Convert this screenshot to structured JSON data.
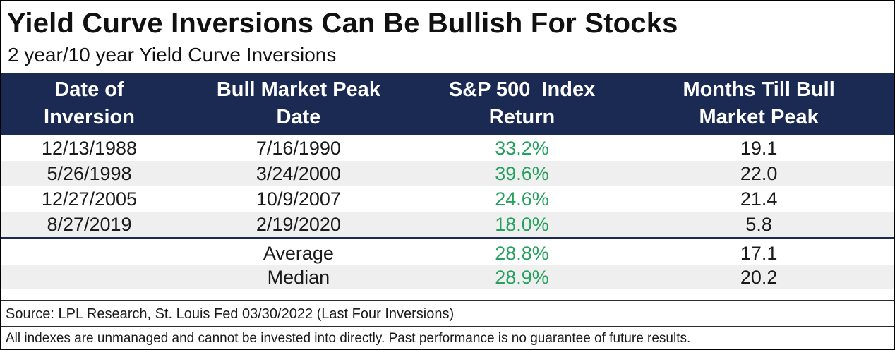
{
  "title": "Yield Curve Inversions Can Be Bullish For Stocks",
  "subtitle": "2 year/10 year Yield Curve Inversions",
  "colors": {
    "header_bg": "#1b2a52",
    "stripe_bg": "#efefef",
    "positive_green": "#24a15e"
  },
  "table": {
    "columns": [
      {
        "line1": "Date of",
        "line2": "Inversion"
      },
      {
        "line1": "Bull Market Peak",
        "line2": "Date"
      },
      {
        "line1": "S&P 500  Index",
        "line2": "Return"
      },
      {
        "line1": "Months Till Bull",
        "line2": "Market Peak"
      }
    ],
    "rows": [
      {
        "inversion_date": "12/13/1988",
        "peak_date": "7/16/1990",
        "sp500_return": "33.2%",
        "months_to_peak": "19.1"
      },
      {
        "inversion_date": "5/26/1998",
        "peak_date": "3/24/2000",
        "sp500_return": "39.6%",
        "months_to_peak": "22.0"
      },
      {
        "inversion_date": "12/27/2005",
        "peak_date": "10/9/2007",
        "sp500_return": "24.6%",
        "months_to_peak": "21.4"
      },
      {
        "inversion_date": "8/27/2019",
        "peak_date": "2/19/2020",
        "sp500_return": "18.0%",
        "months_to_peak": "5.8"
      }
    ],
    "summary_rows": [
      {
        "label": "Average",
        "sp500_return": "28.8%",
        "months_to_peak": "17.1"
      },
      {
        "label": "Median",
        "sp500_return": "28.9%",
        "months_to_peak": "20.2"
      }
    ]
  },
  "footer": {
    "source": "Source: LPL Research, St. Louis Fed 03/30/2022 (Last Four Inversions)",
    "disclaimer": "All indexes are unmanaged and cannot be invested into directly. Past performance is no guarantee of future results."
  },
  "chart_data": {
    "type": "table",
    "title": "Yield Curve Inversions Can Be Bullish For Stocks",
    "subtitle": "2 year/10 year Yield Curve Inversions",
    "columns": [
      "Date of Inversion",
      "Bull Market Peak Date",
      "S&P 500  Index Return",
      "Months Till Bull Market Peak"
    ],
    "rows": [
      [
        "12/13/1988",
        "7/16/1990",
        "33.2%",
        "19.1"
      ],
      [
        "5/26/1998",
        "3/24/2000",
        "39.6%",
        "22.0"
      ],
      [
        "12/27/2005",
        "10/9/2007",
        "24.6%",
        "21.4"
      ],
      [
        "8/27/2019",
        "2/19/2020",
        "18.0%",
        "5.8"
      ]
    ],
    "summary": [
      [
        "Average",
        "28.8%",
        "17.1"
      ],
      [
        "Median",
        "28.9%",
        "20.2"
      ]
    ],
    "notes": [
      "Source: LPL Research, St. Louis Fed 03/30/2022 (Last Four Inversions)",
      "All indexes are unmanaged and cannot be invested into directly. Past performance is no guarantee of future results."
    ]
  }
}
